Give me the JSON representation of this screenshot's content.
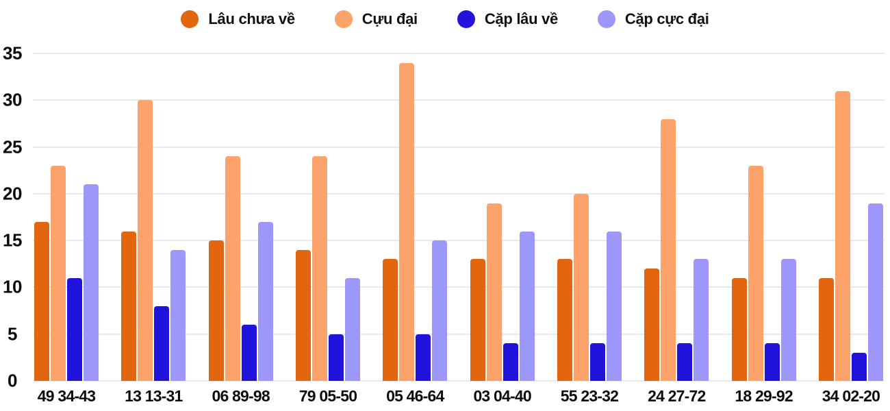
{
  "chart_data": {
    "type": "bar",
    "title": "",
    "categories": [
      "49 34-43",
      "13 13-31",
      "06 89-98",
      "79 05-50",
      "05 46-64",
      "03 04-40",
      "55 23-32",
      "24 27-72",
      "18 29-92",
      "34 02-20"
    ],
    "series": [
      {
        "name": "Lâu chưa về",
        "color": "#e2650f",
        "values": [
          17,
          16,
          15,
          14,
          13,
          13,
          13,
          12,
          11,
          11
        ]
      },
      {
        "name": "Cựu đại",
        "color": "#fba36b",
        "values": [
          23,
          30,
          24,
          24,
          34,
          19,
          20,
          28,
          23,
          31
        ]
      },
      {
        "name": "Cặp lâu về",
        "color": "#2213dc",
        "values": [
          11,
          8,
          6,
          5,
          5,
          4,
          4,
          4,
          4,
          3
        ]
      },
      {
        "name": "Cặp cực đại",
        "color": "#9e97fa",
        "values": [
          21,
          14,
          17,
          11,
          15,
          16,
          16,
          13,
          13,
          19
        ]
      }
    ],
    "xlabel": "",
    "ylabel": "",
    "ylim": [
      0,
      35
    ],
    "yticks": [
      0,
      5,
      10,
      15,
      20,
      25,
      30,
      35
    ],
    "grid": true,
    "legend_position": "top",
    "colors": {
      "text": "#0b0b0b",
      "gridline": "#e9e9e9",
      "background": "#ffffff"
    }
  }
}
